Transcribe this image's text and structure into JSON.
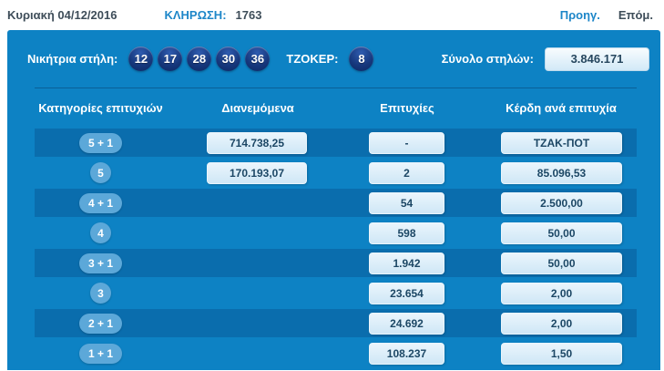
{
  "header": {
    "date": "Κυριακή 04/12/2016",
    "draw_label": "ΚΛΗΡΩΣΗ:",
    "draw_number": "1763",
    "prev_label": "Προηγ.",
    "next_label": "Επόμ."
  },
  "panel": {
    "winning_label": "Νικήτρια στήλη:",
    "numbers": [
      "12",
      "17",
      "28",
      "30",
      "36"
    ],
    "joker_label": "ΤΖΟΚΕΡ:",
    "joker_number": "8",
    "total_columns_label": "Σύνολο στηλών:",
    "total_columns_value": "3.846.171"
  },
  "table": {
    "headers": [
      "Κατηγορίες επιτυχιών",
      "Διανεμόμενα",
      "Επιτυχίες",
      "Κέρδη ανά επιτυχία"
    ],
    "rows": [
      {
        "category": "5 + 1",
        "distributed": "714.738,25",
        "hits": "-",
        "prize": "ΤΖΑΚ-ΠΟΤ"
      },
      {
        "category": "5",
        "distributed": "170.193,07",
        "hits": "2",
        "prize": "85.096,53"
      },
      {
        "category": "4 + 1",
        "distributed": "",
        "hits": "54",
        "prize": "2.500,00"
      },
      {
        "category": "4",
        "distributed": "",
        "hits": "598",
        "prize": "50,00"
      },
      {
        "category": "3 + 1",
        "distributed": "",
        "hits": "1.942",
        "prize": "50,00"
      },
      {
        "category": "3",
        "distributed": "",
        "hits": "23.654",
        "prize": "2,00"
      },
      {
        "category": "2 + 1",
        "distributed": "",
        "hits": "24.692",
        "prize": "2,00"
      },
      {
        "category": "1 + 1",
        "distributed": "",
        "hits": "108.237",
        "prize": "1,50"
      }
    ]
  },
  "colors": {
    "panel": "#0d82c4",
    "row_stripe": "#0a6dad",
    "ball": "#16377c",
    "badge": "#5ca8d9",
    "value_box": "#cfe7f6",
    "link": "#1d86c8"
  }
}
